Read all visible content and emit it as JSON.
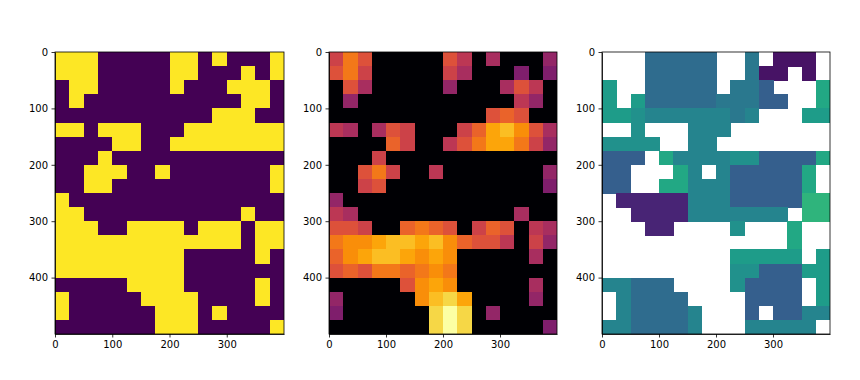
{
  "chart_data": [
    {
      "type": "heatmap",
      "color": "viridis",
      "color_range": [
        0,
        1
      ],
      "xlim": [
        0,
        400
      ],
      "ylim": [
        500,
        0
      ],
      "xticks": [
        0,
        100,
        200,
        300
      ],
      "yticks": [
        0,
        100,
        200,
        300,
        400
      ],
      "values": [
        [
          1,
          1,
          1,
          0,
          0,
          0,
          0,
          0,
          1,
          1,
          0,
          1,
          0,
          0,
          0,
          1
        ],
        [
          1,
          1,
          1,
          0,
          0,
          0,
          0,
          0,
          1,
          1,
          0,
          0,
          0,
          1,
          0,
          1
        ],
        [
          0,
          1,
          1,
          0,
          0,
          0,
          0,
          0,
          1,
          0,
          0,
          0,
          1,
          1,
          1,
          0
        ],
        [
          0,
          1,
          0,
          0,
          0,
          0,
          0,
          0,
          0,
          0,
          0,
          0,
          0,
          1,
          1,
          0
        ],
        [
          0,
          0,
          0,
          0,
          0,
          0,
          0,
          0,
          0,
          0,
          0,
          1,
          1,
          1,
          0,
          0
        ],
        [
          1,
          1,
          0,
          1,
          1,
          1,
          0,
          0,
          0,
          1,
          1,
          1,
          1,
          1,
          1,
          1
        ],
        [
          0,
          0,
          0,
          0,
          1,
          1,
          0,
          0,
          1,
          1,
          1,
          1,
          1,
          1,
          1,
          1
        ],
        [
          0,
          0,
          0,
          1,
          0,
          0,
          0,
          0,
          0,
          0,
          0,
          0,
          0,
          0,
          0,
          0
        ],
        [
          0,
          0,
          1,
          1,
          1,
          0,
          0,
          1,
          0,
          0,
          0,
          0,
          0,
          0,
          0,
          1
        ],
        [
          0,
          0,
          1,
          1,
          0,
          0,
          0,
          0,
          0,
          0,
          0,
          0,
          0,
          0,
          0,
          1
        ],
        [
          1,
          0,
          0,
          0,
          0,
          0,
          0,
          0,
          0,
          0,
          0,
          0,
          0,
          0,
          0,
          0
        ],
        [
          1,
          1,
          0,
          0,
          0,
          0,
          0,
          0,
          0,
          0,
          0,
          0,
          0,
          1,
          0,
          0
        ],
        [
          1,
          1,
          1,
          0,
          0,
          1,
          1,
          1,
          1,
          0,
          1,
          1,
          1,
          0,
          1,
          1
        ],
        [
          1,
          1,
          1,
          1,
          1,
          1,
          1,
          1,
          1,
          1,
          1,
          1,
          1,
          0,
          1,
          1
        ],
        [
          1,
          1,
          1,
          1,
          1,
          1,
          1,
          1,
          1,
          0,
          0,
          0,
          0,
          0,
          1,
          0
        ],
        [
          1,
          1,
          1,
          1,
          1,
          1,
          1,
          1,
          1,
          0,
          0,
          0,
          0,
          0,
          0,
          0
        ],
        [
          0,
          0,
          0,
          0,
          0,
          1,
          1,
          1,
          1,
          0,
          0,
          0,
          0,
          0,
          1,
          0
        ],
        [
          1,
          0,
          0,
          0,
          0,
          0,
          1,
          1,
          1,
          1,
          0,
          0,
          0,
          0,
          1,
          0
        ],
        [
          1,
          0,
          0,
          0,
          0,
          0,
          0,
          1,
          1,
          1,
          0,
          1,
          0,
          0,
          0,
          0
        ],
        [
          0,
          0,
          0,
          0,
          0,
          0,
          0,
          1,
          1,
          1,
          0,
          0,
          0,
          0,
          0,
          1
        ]
      ]
    },
    {
      "type": "heatmap",
      "color": "inferno",
      "color_range": [
        0,
        1
      ],
      "xlim": [
        0,
        400
      ],
      "ylim": [
        500,
        0
      ],
      "xticks": [
        0,
        100,
        200,
        300
      ],
      "yticks": [
        0,
        100,
        200,
        300,
        400
      ],
      "values": [
        [
          0.55,
          0.7,
          0.6,
          0,
          0,
          0,
          0,
          0,
          0.6,
          0.5,
          0,
          0.45,
          0,
          0,
          0,
          0.4
        ],
        [
          0.6,
          0.7,
          0.55,
          0,
          0,
          0,
          0,
          0,
          0.55,
          0.45,
          0,
          0,
          0,
          0.35,
          0,
          0.35
        ],
        [
          0,
          0.6,
          0.45,
          0,
          0,
          0,
          0,
          0,
          0.4,
          0,
          0,
          0,
          0.45,
          0.6,
          0.5,
          0
        ],
        [
          0,
          0.4,
          0,
          0,
          0,
          0,
          0,
          0,
          0,
          0,
          0,
          0,
          0,
          0.5,
          0.4,
          0
        ],
        [
          0,
          0,
          0,
          0,
          0,
          0,
          0,
          0,
          0,
          0,
          0,
          0.6,
          0.65,
          0.6,
          0,
          0
        ],
        [
          0.5,
          0.45,
          0,
          0.45,
          0.6,
          0.55,
          0,
          0,
          0,
          0.55,
          0.65,
          0.8,
          0.85,
          0.75,
          0.6,
          0.45
        ],
        [
          0,
          0,
          0,
          0,
          0.65,
          0.55,
          0,
          0,
          0.5,
          0.6,
          0.7,
          0.8,
          0.8,
          0.7,
          0.55,
          0.4
        ],
        [
          0,
          0,
          0,
          0.55,
          0,
          0,
          0,
          0,
          0,
          0,
          0,
          0,
          0,
          0,
          0,
          0
        ],
        [
          0,
          0,
          0.6,
          0.7,
          0.55,
          0,
          0,
          0.5,
          0,
          0,
          0,
          0,
          0,
          0,
          0,
          0.4
        ],
        [
          0,
          0,
          0.55,
          0.6,
          0,
          0,
          0,
          0,
          0,
          0,
          0,
          0,
          0,
          0,
          0,
          0.35
        ],
        [
          0.4,
          0,
          0,
          0,
          0,
          0,
          0,
          0,
          0,
          0,
          0,
          0,
          0,
          0,
          0,
          0
        ],
        [
          0.5,
          0.45,
          0,
          0,
          0,
          0,
          0,
          0,
          0,
          0,
          0,
          0,
          0,
          0.45,
          0,
          0
        ],
        [
          0.6,
          0.6,
          0.55,
          0,
          0,
          0.65,
          0.7,
          0.65,
          0.6,
          0,
          0.55,
          0.65,
          0.6,
          0,
          0.5,
          0.45
        ],
        [
          0.7,
          0.75,
          0.75,
          0.8,
          0.85,
          0.85,
          0.8,
          0.85,
          0.75,
          0.65,
          0.6,
          0.6,
          0.5,
          0,
          0.55,
          0.4
        ],
        [
          0.65,
          0.75,
          0.8,
          0.85,
          0.85,
          0.8,
          0.75,
          0.8,
          0.75,
          0,
          0,
          0,
          0,
          0,
          0.45,
          0
        ],
        [
          0.6,
          0.65,
          0.6,
          0.7,
          0.7,
          0.65,
          0.7,
          0.75,
          0.7,
          0,
          0,
          0,
          0,
          0,
          0,
          0
        ],
        [
          0,
          0,
          0,
          0,
          0,
          0.6,
          0.75,
          0.8,
          0.75,
          0,
          0,
          0,
          0,
          0,
          0.45,
          0
        ],
        [
          0.4,
          0,
          0,
          0,
          0,
          0,
          0.75,
          0.85,
          0.9,
          0.8,
          0,
          0,
          0,
          0,
          0.4,
          0
        ],
        [
          0.35,
          0,
          0,
          0,
          0,
          0,
          0,
          0.9,
          1,
          0.9,
          0,
          0.4,
          0,
          0,
          0,
          0
        ],
        [
          0,
          0,
          0,
          0,
          0,
          0,
          0,
          0.9,
          1,
          0.9,
          0,
          0,
          0,
          0,
          0,
          0.35
        ]
      ]
    },
    {
      "type": "heatmap",
      "color": "viridis",
      "color_range": [
        0,
        1
      ],
      "xlim": [
        0,
        400
      ],
      "ylim": [
        500,
        0
      ],
      "xticks": [
        0,
        100,
        200,
        300
      ],
      "yticks": [
        0,
        100,
        200,
        300,
        400
      ],
      "values": [
        [
          null,
          null,
          null,
          0.35,
          0.35,
          0.35,
          0.35,
          0.35,
          null,
          null,
          0.4,
          null,
          0.05,
          0.05,
          0.05,
          null
        ],
        [
          null,
          null,
          null,
          0.35,
          0.35,
          0.35,
          0.35,
          0.35,
          null,
          null,
          0.4,
          0.05,
          0.05,
          null,
          0.05,
          null
        ],
        [
          0.55,
          null,
          null,
          0.35,
          0.35,
          0.35,
          0.35,
          0.35,
          null,
          0.4,
          0.4,
          0.3,
          null,
          null,
          null,
          0.6
        ],
        [
          0.55,
          null,
          0.55,
          0.35,
          0.35,
          0.35,
          0.35,
          0.35,
          0.4,
          0.4,
          0.4,
          0.3,
          0.3,
          null,
          null,
          0.6
        ],
        [
          0.55,
          0.55,
          0.5,
          0.45,
          0.45,
          0.45,
          0.45,
          0.45,
          0.45,
          0.4,
          0.45,
          null,
          null,
          null,
          0.55,
          0.55
        ],
        [
          null,
          null,
          0.5,
          null,
          null,
          null,
          0.45,
          0.45,
          0.45,
          null,
          null,
          null,
          null,
          null,
          null,
          null
        ],
        [
          0.5,
          0.5,
          0.5,
          0.5,
          null,
          null,
          0.45,
          0.45,
          null,
          null,
          null,
          null,
          null,
          null,
          null,
          null
        ],
        [
          0.3,
          0.3,
          0.3,
          null,
          0.6,
          0.45,
          0.45,
          0.45,
          0.45,
          0.5,
          0.5,
          0.3,
          0.3,
          0.3,
          0.3,
          0.6
        ],
        [
          0.3,
          0.3,
          null,
          null,
          null,
          0.6,
          0.45,
          null,
          0.45,
          0.3,
          0.3,
          0.3,
          0.3,
          0.3,
          0.6,
          null
        ],
        [
          0.3,
          0.3,
          null,
          null,
          0.6,
          0.6,
          0.45,
          0.45,
          0.45,
          0.3,
          0.3,
          0.3,
          0.3,
          0.3,
          0.6,
          null
        ],
        [
          null,
          0.1,
          0.1,
          0.1,
          0.1,
          0.1,
          0.45,
          0.45,
          0.45,
          0.3,
          0.3,
          0.3,
          0.3,
          0.3,
          0.65,
          0.65
        ],
        [
          null,
          null,
          0.1,
          0.1,
          0.1,
          0.1,
          0.45,
          0.45,
          0.45,
          0.45,
          0.45,
          0.45,
          0.45,
          null,
          0.65,
          0.65
        ],
        [
          null,
          null,
          null,
          0.1,
          0.1,
          null,
          null,
          null,
          null,
          0.5,
          null,
          null,
          null,
          0.6,
          null,
          null
        ],
        [
          null,
          null,
          null,
          null,
          null,
          null,
          null,
          null,
          null,
          null,
          null,
          null,
          null,
          0.6,
          null,
          null
        ],
        [
          null,
          null,
          null,
          null,
          null,
          null,
          null,
          null,
          null,
          0.55,
          0.55,
          0.55,
          0.55,
          0.55,
          null,
          0.55
        ],
        [
          null,
          null,
          null,
          null,
          null,
          null,
          null,
          null,
          null,
          0.5,
          0.5,
          0.3,
          0.3,
          0.3,
          0.55,
          0.55
        ],
        [
          0.45,
          0.45,
          0.35,
          0.35,
          0.35,
          null,
          null,
          null,
          null,
          0.5,
          0.3,
          0.3,
          0.3,
          0.3,
          null,
          0.55
        ],
        [
          null,
          0.45,
          0.35,
          0.35,
          0.35,
          0.35,
          null,
          null,
          null,
          null,
          0.3,
          0.3,
          0.3,
          0.3,
          null,
          0.55
        ],
        [
          null,
          0.45,
          0.35,
          0.35,
          0.35,
          0.35,
          0.45,
          null,
          null,
          null,
          0.3,
          null,
          0.3,
          0.3,
          0.45,
          0.45
        ],
        [
          0.45,
          0.45,
          0.35,
          0.35,
          0.35,
          0.35,
          0.45,
          null,
          null,
          null,
          0.45,
          0.45,
          0.45,
          0.45,
          0.45,
          null
        ]
      ]
    }
  ]
}
